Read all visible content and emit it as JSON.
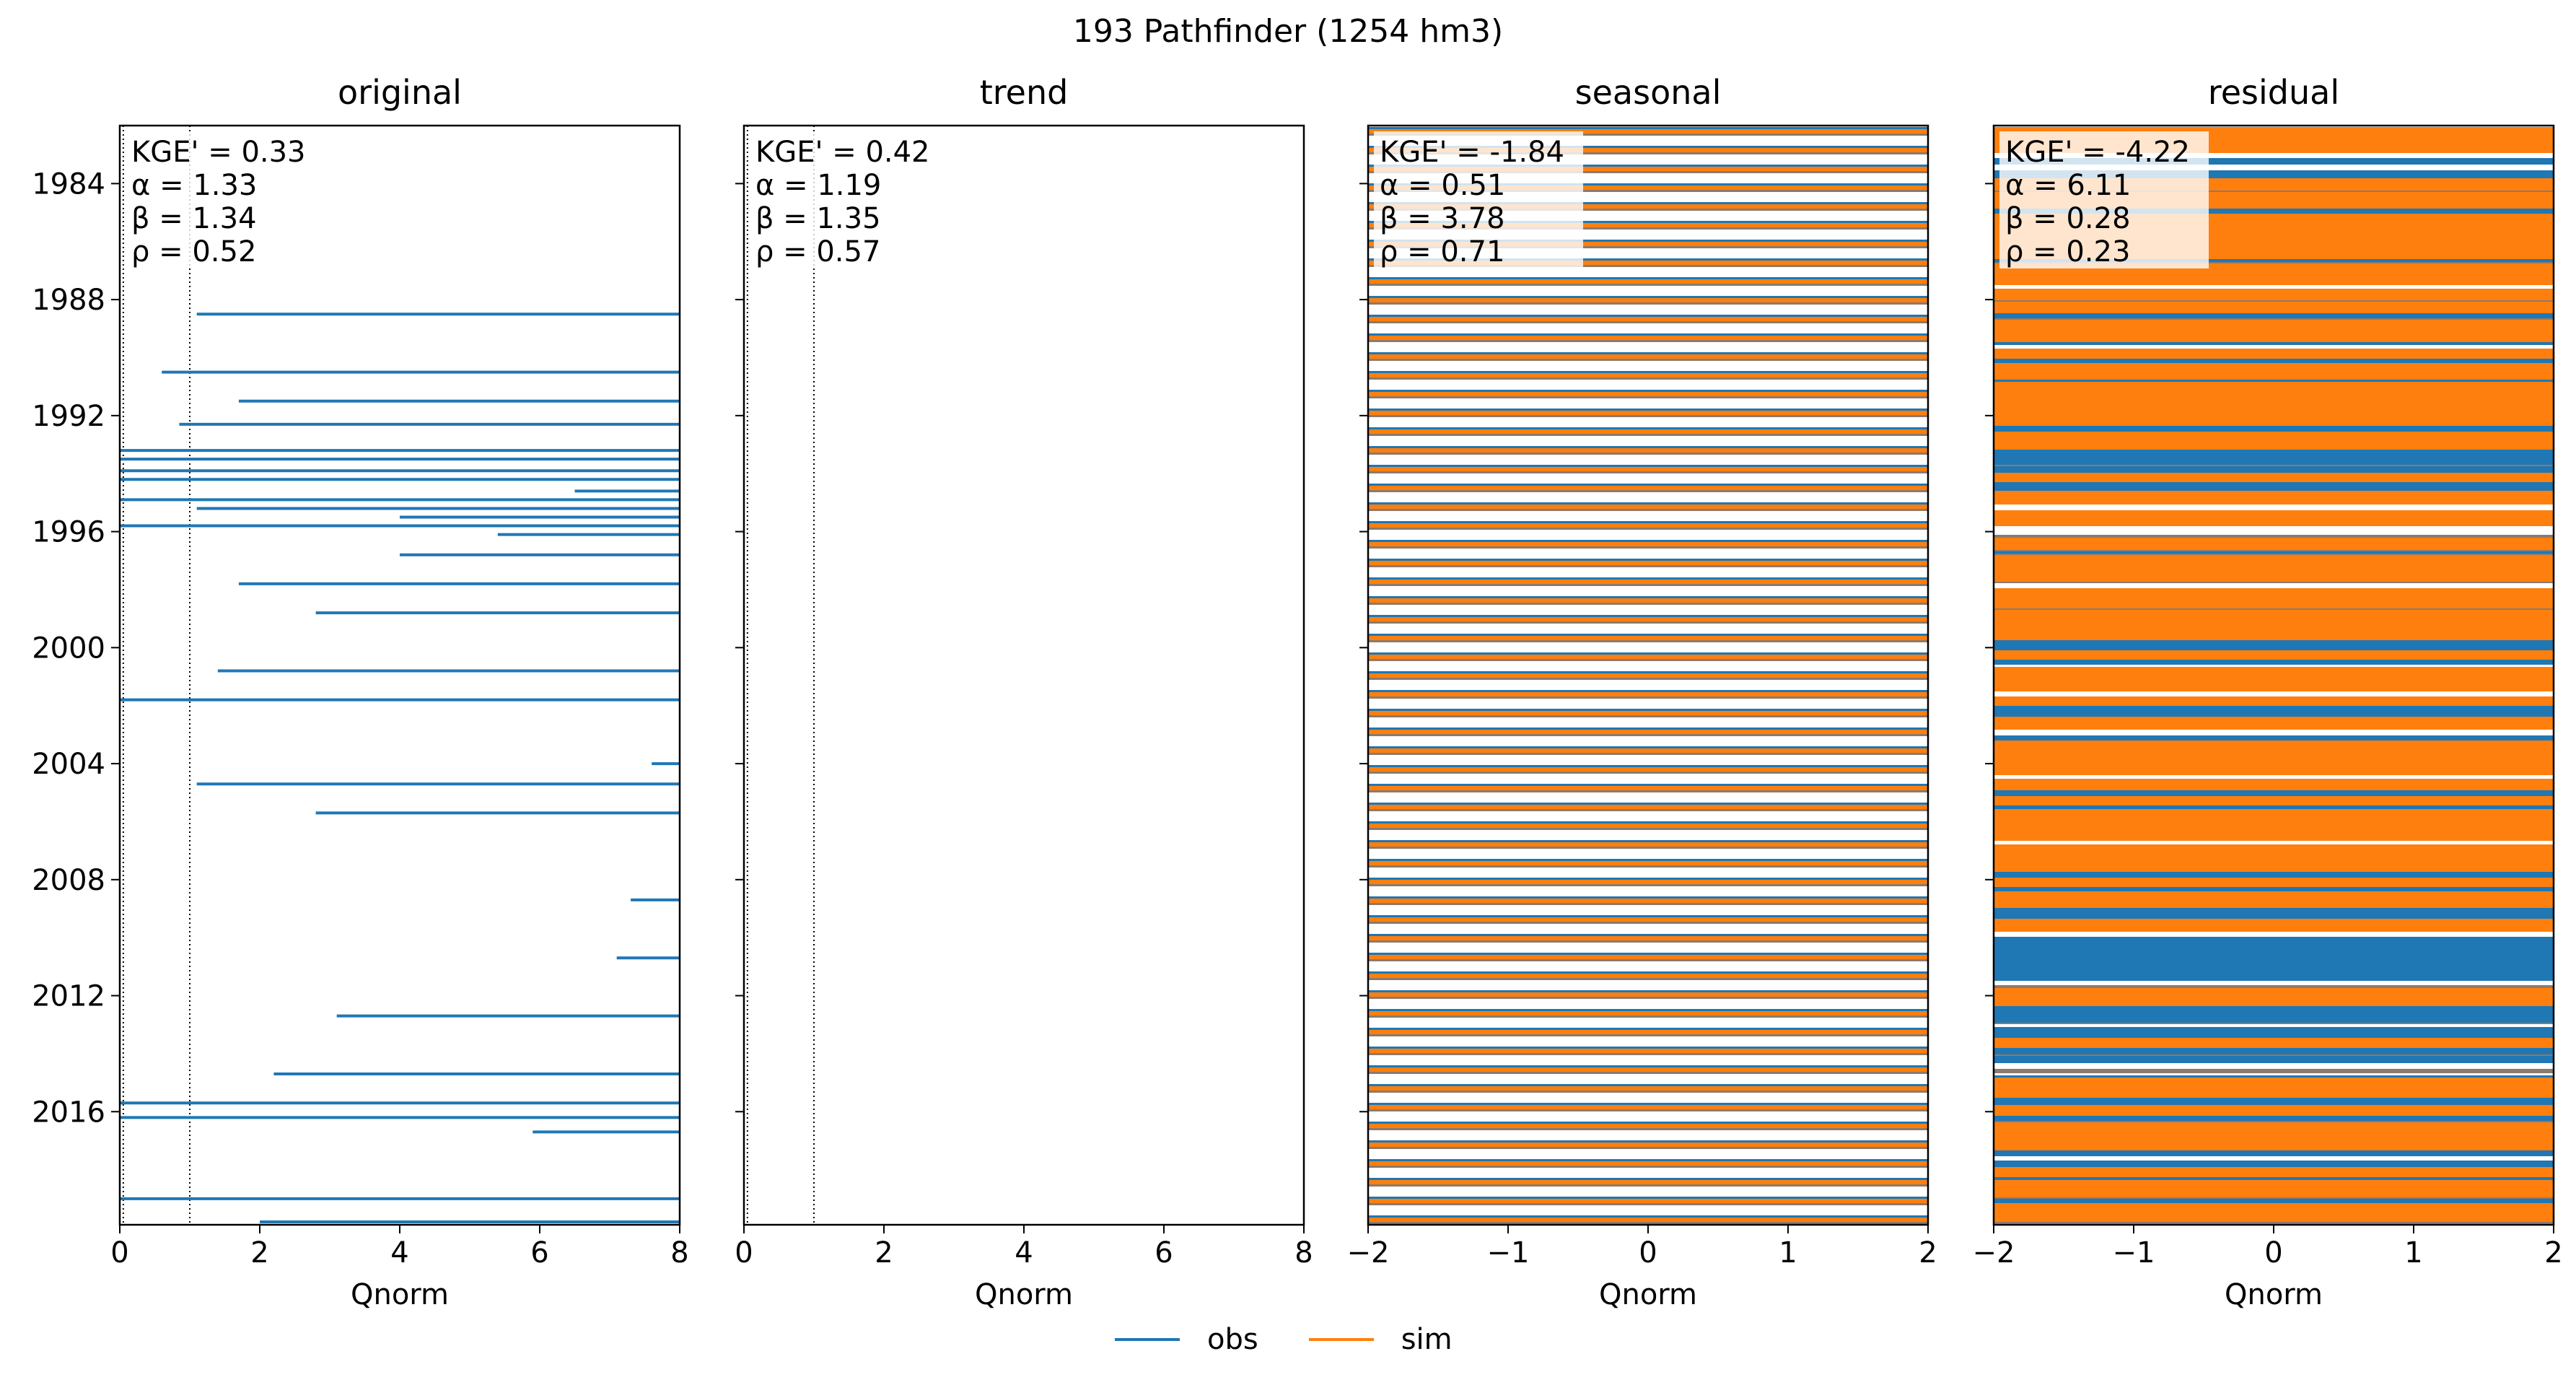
{
  "figure": {
    "title": "193  Pathfinder (1254 hm3)"
  },
  "legend": [
    {
      "label": "obs",
      "color": "#1f77b4"
    },
    {
      "label": "sim",
      "color": "#ff7f0e"
    }
  ],
  "chart_data": [
    {
      "type": "line",
      "title": "original",
      "xlabel": "Qnorm",
      "ylabel": "",
      "xlim": [
        0,
        8
      ],
      "xticks": [
        0,
        2,
        4,
        6,
        8
      ],
      "yticks": [
        "1984",
        "1988",
        "1992",
        "1996",
        "2000",
        "2004",
        "2008",
        "2012",
        "2016"
      ],
      "ylim_years": [
        1982.0,
        2019.9
      ],
      "reference_lines_x": [
        0.0,
        0.05,
        1.0
      ],
      "metrics": [
        "KGE' = 0.33",
        "α = 1.33",
        "β = 1.34",
        "ρ = 0.52"
      ],
      "observed_spikes": [
        {
          "year": 1988.5,
          "value": 1.1
        },
        {
          "year": 1990.5,
          "value": 0.6
        },
        {
          "year": 1991.5,
          "value": 1.7
        },
        {
          "year": 1992.3,
          "value": 0.85
        },
        {
          "year": 1993.2,
          "value": 0.0
        },
        {
          "year": 1993.5,
          "value": 0.0
        },
        {
          "year": 1993.9,
          "value": 0.0
        },
        {
          "year": 1994.2,
          "value": 0.0
        },
        {
          "year": 1994.6,
          "value": 6.5
        },
        {
          "year": 1994.9,
          "value": 0.0
        },
        {
          "year": 1995.2,
          "value": 1.1
        },
        {
          "year": 1995.5,
          "value": 4.0
        },
        {
          "year": 1995.8,
          "value": 0.0
        },
        {
          "year": 1996.1,
          "value": 5.4
        },
        {
          "year": 1996.8,
          "value": 4.0
        },
        {
          "year": 1997.8,
          "value": 1.7
        },
        {
          "year": 1998.8,
          "value": 2.8
        },
        {
          "year": 2000.8,
          "value": 1.4
        },
        {
          "year": 2001.8,
          "value": 0.0
        },
        {
          "year": 2004.0,
          "value": 7.6
        },
        {
          "year": 2004.7,
          "value": 1.1
        },
        {
          "year": 2005.7,
          "value": 2.8
        },
        {
          "year": 2008.7,
          "value": 7.3
        },
        {
          "year": 2010.7,
          "value": 7.1
        },
        {
          "year": 2012.7,
          "value": 3.1
        },
        {
          "year": 2014.7,
          "value": 2.2
        },
        {
          "year": 2015.7,
          "value": 0.0
        },
        {
          "year": 2016.2,
          "value": 0.0
        },
        {
          "year": 2016.7,
          "value": 5.9
        },
        {
          "year": 2019.0,
          "value": 0.0
        },
        {
          "year": 2019.8,
          "value": 2.0
        }
      ]
    },
    {
      "type": "line",
      "title": "trend",
      "xlabel": "Qnorm",
      "ylabel": "",
      "xlim": [
        0,
        8
      ],
      "xticks": [
        0,
        2,
        4,
        6,
        8
      ],
      "ylim_years": [
        1982.0,
        2019.9
      ],
      "reference_lines_x": [
        0.0,
        0.05,
        1.0
      ],
      "metrics": [
        "KGE' = 0.42",
        "α = 1.19",
        "β = 1.35",
        "ρ = 0.57"
      ],
      "observed_spikes": [],
      "simulated_spikes": []
    },
    {
      "type": "line",
      "title": "seasonal",
      "xlabel": "Qnorm",
      "ylabel": "",
      "xlim": [
        -2,
        2
      ],
      "xticks": [
        "−2",
        "−1",
        "0",
        "1",
        "2"
      ],
      "ylim_years": [
        1982.0,
        2019.9
      ],
      "metrics": [
        "KGE' = -1.84",
        "α = 0.51",
        "β = 3.78",
        "ρ = 0.71"
      ],
      "pattern": "full-width alternating obs/sim oscillation, about 1 per year"
    },
    {
      "type": "line",
      "title": "residual",
      "xlabel": "Qnorm",
      "ylabel": "",
      "xlim": [
        -2,
        2
      ],
      "xticks": [
        "−2",
        "−1",
        "0",
        "1",
        "2"
      ],
      "ylim_years": [
        1982.0,
        2019.9
      ],
      "metrics": [
        "KGE' = -4.22",
        "α = 6.11",
        "β = 0.28",
        "ρ = 0.23"
      ],
      "pattern": "dense full-width obs/sim residual oscillation, sim dominant"
    }
  ]
}
